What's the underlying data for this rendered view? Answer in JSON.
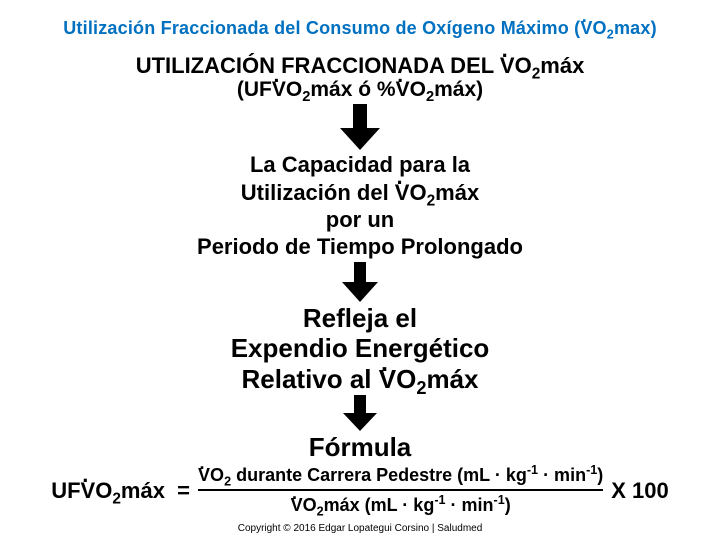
{
  "colors": {
    "title": "#0070c0",
    "text": "#000000",
    "arrow_fill": "#000000",
    "background": "#ffffff"
  },
  "typography": {
    "title_fontsize": 18,
    "main_fontsize": 22,
    "sub_fontsize": 21,
    "capacity_fontsize": 22,
    "reflect_fontsize": 26,
    "formula_label_fontsize": 26,
    "eq_left_fontsize": 22,
    "eq_frac_fontsize": 18,
    "copyright_fontsize": 10,
    "font_family": "Arial",
    "weight_heavy": 900
  },
  "arrows": [
    {
      "stem_w": 14,
      "stem_h": 24,
      "head_w": 40,
      "head_h": 22
    },
    {
      "stem_w": 12,
      "stem_h": 20,
      "head_w": 36,
      "head_h": 20
    },
    {
      "stem_w": 12,
      "stem_h": 18,
      "head_w": 34,
      "head_h": 18
    }
  ],
  "title_html": "Utilización Fraccionada del Consumo de Oxígeno Máximo (<span class='vdot'>V</span>O<sub>2</sub>max)",
  "block1_line1_html": "UTILIZACIÓN FRACCIONADA DEL <span class='vdot'>V</span>O<sub>2</sub>máx",
  "block1_line2_html": "(UF<span class='vdot'>V</span>O<sub>2</sub>máx ó %<span class='vdot'>V</span>O<sub>2</sub>máx)",
  "block2_line1_html": "La Capacidad para la",
  "block2_line2_html": "Utilización del <span class='vdot'>V</span>O<sub>2</sub>máx",
  "block2_line3_html": "por un",
  "block2_line4_html": "Periodo de Tiempo Prolongado",
  "block3_line1_html": "Refleja el",
  "block3_line2_html": "Expendio Energético",
  "block3_line3_html": "Relativo al <span class='vdot'>V</span>O<sub>2</sub>máx",
  "formula_label": "Fórmula",
  "eq_left_html": "UF<span class='vdot'>V</span>O<sub>2</sub>máx&nbsp; =",
  "eq_num_html": "<span class='vdot'>V</span>O<sub>2</sub> durante Carrera Pedestre (mL · kg<sup>-1</sup> · min<sup>-1</sup>)",
  "eq_den_html": "<span class='vdot'>V</span>O<sub>2</sub>máx (mL · kg<sup>-1</sup> · min<sup>-1</sup>)",
  "eq_right_html": "X 100",
  "copyright": "Copyright © 2016 Edgar Lopategui Corsino | Saludmed"
}
